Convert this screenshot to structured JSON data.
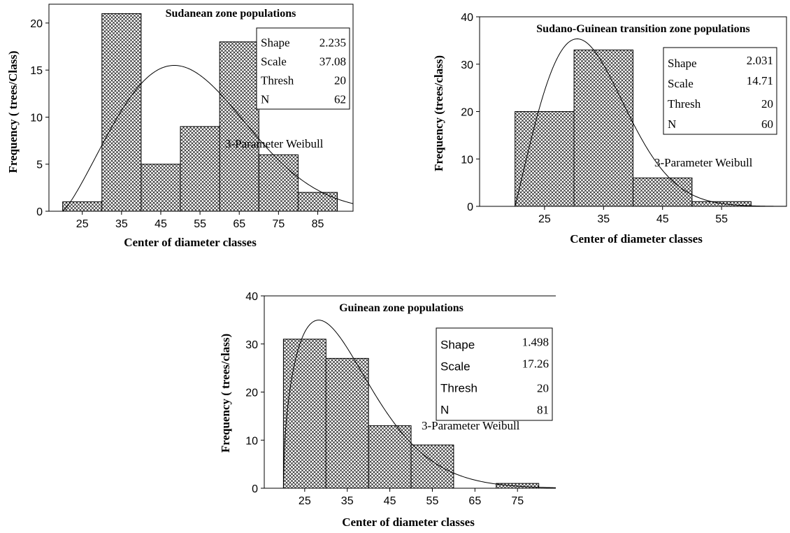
{
  "chart_data": [
    {
      "type": "bar",
      "title": "Sudanean zone populations",
      "xlabel": "Center of diameter classes",
      "ylabel": "Frequency (  trees/Class)",
      "x_ticks": [
        "25",
        "35",
        "45",
        "55",
        "65",
        "75",
        "85"
      ],
      "y_ticks": [
        "0",
        "5",
        "10",
        "15",
        "20"
      ],
      "ylim": [
        0,
        22
      ],
      "xlim": [
        16.5,
        94
      ],
      "bins": [
        {
          "lo": 20,
          "hi": 30,
          "value": 1
        },
        {
          "lo": 30,
          "hi": 40,
          "value": 21
        },
        {
          "lo": 40,
          "hi": 50,
          "value": 5
        },
        {
          "lo": 50,
          "hi": 60,
          "value": 9
        },
        {
          "lo": 60,
          "hi": 70,
          "value": 18
        },
        {
          "lo": 70,
          "hi": 80,
          "value": 6
        },
        {
          "lo": 80,
          "hi": 90,
          "value": 2
        }
      ],
      "fit": {
        "label": "3-Parameter Weibull",
        "shape": 2.235,
        "scale": 37.08,
        "thresh": 20,
        "n": 62,
        "bin_width": 10
      },
      "stats": [
        {
          "label": "Shape",
          "value": "2.235"
        },
        {
          "label": "Scale",
          "value": "37.08"
        },
        {
          "label": "Thresh",
          "value": "20"
        },
        {
          "label": "N",
          "value": "62"
        }
      ],
      "fit_label": "3-Parameter Weibull"
    },
    {
      "type": "bar",
      "title": "Sudano-Guinean transition  zone populations",
      "xlabel": "Center of diameter classes",
      "ylabel": "Frequency (trees/class)",
      "x_ticks": [
        "25",
        "35",
        "45",
        "55"
      ],
      "y_ticks": [
        "0",
        "10",
        "20",
        "30",
        "40"
      ],
      "ylim": [
        0,
        40
      ],
      "xlim": [
        14,
        66
      ],
      "bins": [
        {
          "lo": 20,
          "hi": 30,
          "value": 20
        },
        {
          "lo": 30,
          "hi": 40,
          "value": 33
        },
        {
          "lo": 40,
          "hi": 50,
          "value": 6
        },
        {
          "lo": 50,
          "hi": 60,
          "value": 1
        }
      ],
      "fit": {
        "label": "3-Parameter Weibull",
        "shape": 2.031,
        "scale": 14.71,
        "thresh": 20,
        "n": 60,
        "bin_width": 10
      },
      "stats": [
        {
          "label": "Shape",
          "value": "2.031"
        },
        {
          "label": "Scale",
          "value": "14.71"
        },
        {
          "label": "Thresh",
          "value": "20"
        },
        {
          "label": "N",
          "value": "60"
        }
      ],
      "fit_label": "3-Parameter Weibull"
    },
    {
      "type": "bar",
      "title": "Guinean zone populations",
      "xlabel": "Center of diameter  classes",
      "ylabel": "Frequency ( trees/class)",
      "x_ticks": [
        "25",
        "35",
        "45",
        "55",
        "65",
        "75"
      ],
      "y_ticks": [
        "0",
        "10",
        "20",
        "30",
        "40"
      ],
      "ylim": [
        0,
        40
      ],
      "xlim": [
        15.5,
        84
      ],
      "bins": [
        {
          "lo": 20,
          "hi": 30,
          "value": 31
        },
        {
          "lo": 30,
          "hi": 40,
          "value": 27
        },
        {
          "lo": 40,
          "hi": 50,
          "value": 13
        },
        {
          "lo": 50,
          "hi": 60,
          "value": 9
        },
        {
          "lo": 60,
          "hi": 70,
          "value": 0
        },
        {
          "lo": 70,
          "hi": 80,
          "value": 1
        }
      ],
      "fit": {
        "label": "3-Parameter Weibull",
        "shape": 1.498,
        "scale": 17.26,
        "thresh": 20,
        "n": 81,
        "bin_width": 10
      },
      "stats": [
        {
          "label": "Shape",
          "value": "1.498"
        },
        {
          "label": "Scale",
          "value": "17.26"
        },
        {
          "label": "Thresh",
          "value": "20"
        },
        {
          "label": "N",
          "value": "81"
        }
      ],
      "fit_label": "3-Parameter Weibull"
    }
  ]
}
